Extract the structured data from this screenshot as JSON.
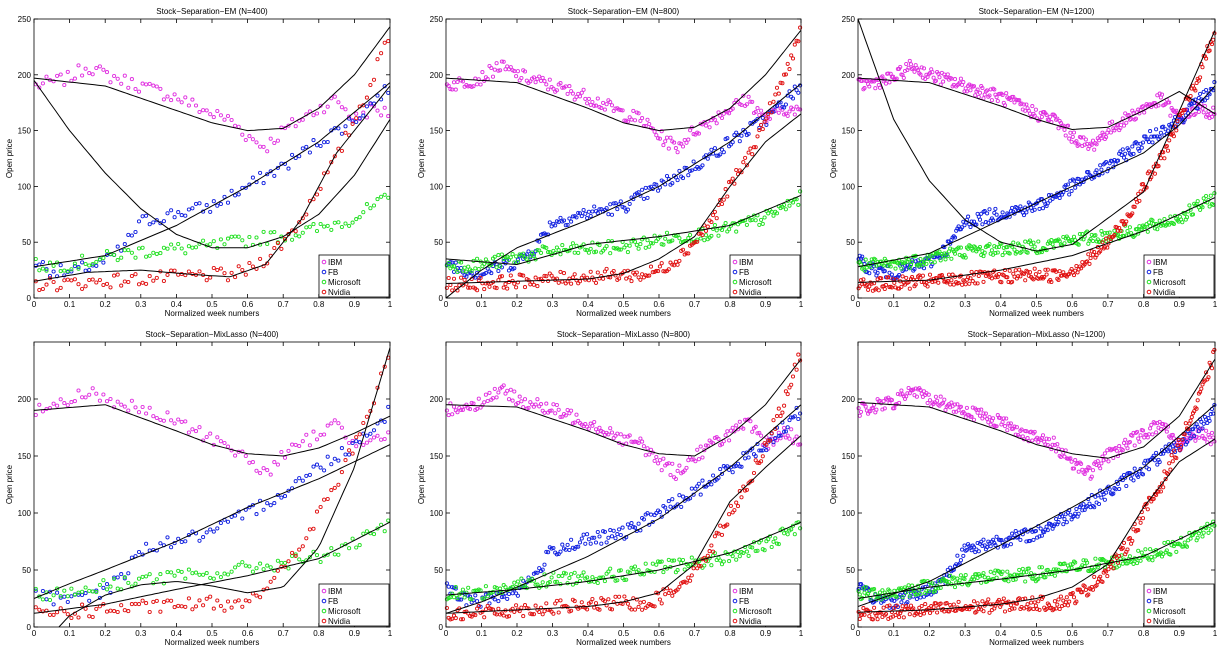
{
  "series_colors": {
    "IBM": "#e030e0",
    "FB": "#1020e0",
    "Microsoft": "#20e020",
    "Nvidia": "#e01010"
  },
  "chart_data": [
    {
      "type": "scatter",
      "title": "Stock−Separation−EM (N=400)",
      "xlabel": "Normalized week numbers",
      "ylabel": "Open price",
      "xlim": [
        0,
        1
      ],
      "ylim": [
        0,
        250
      ],
      "xticks": [
        "0",
        "0.1",
        "0.2",
        "0.3",
        "0.4",
        "0.5",
        "0.6",
        "0.7",
        "0.8",
        "0.9",
        "1"
      ],
      "yticks": [
        "0",
        "50",
        "100",
        "150",
        "200",
        "250"
      ],
      "legend": {
        "position": "bottom-right",
        "entries": [
          "IBM",
          "FB",
          "Microsoft",
          "Nvidia"
        ]
      },
      "n_points": 100,
      "fits": [
        {
          "x": [
            0,
            0.2,
            0.4,
            0.5,
            0.6,
            0.7,
            0.8,
            0.9,
            1
          ],
          "y": [
            197,
            190,
            168,
            157,
            150,
            152,
            170,
            200,
            243
          ]
        },
        {
          "x": [
            0,
            0.1,
            0.2,
            0.3,
            0.4,
            0.5,
            0.6,
            0.7,
            0.8,
            0.9,
            1
          ],
          "y": [
            195,
            150,
            112,
            80,
            57,
            45,
            45,
            55,
            75,
            110,
            160
          ]
        },
        {
          "x": [
            0,
            0.2,
            0.4,
            0.6,
            0.8,
            1
          ],
          "y": [
            28,
            38,
            65,
            100,
            140,
            193
          ]
        },
        {
          "x": [
            0,
            0.15,
            0.3,
            0.45,
            0.55,
            0.65,
            0.75,
            0.85,
            1
          ],
          "y": [
            15,
            23,
            25,
            21,
            19,
            30,
            70,
            130,
            190
          ]
        }
      ]
    },
    {
      "type": "scatter",
      "title": "Stock−Separation−EM (N=800)",
      "xlabel": "Normalized week numbers",
      "ylabel": "Open price",
      "xlim": [
        0,
        1
      ],
      "ylim": [
        0,
        250
      ],
      "xticks": [
        "0",
        "0.1",
        "0.2",
        "0.3",
        "0.4",
        "0.5",
        "0.6",
        "0.7",
        "0.8",
        "0.9",
        "1"
      ],
      "yticks": [
        "0",
        "50",
        "100",
        "150",
        "200",
        "250"
      ],
      "legend": {
        "position": "bottom-right",
        "entries": [
          "IBM",
          "FB",
          "Microsoft",
          "Nvidia"
        ]
      },
      "n_points": 200,
      "fits": [
        {
          "x": [
            0,
            0.2,
            0.4,
            0.5,
            0.6,
            0.7,
            0.8,
            0.9,
            1
          ],
          "y": [
            197,
            193,
            170,
            157,
            150,
            153,
            170,
            200,
            240
          ]
        },
        {
          "x": [
            0,
            0.1,
            0.2,
            0.4,
            0.6,
            0.8,
            1
          ],
          "y": [
            0,
            25,
            45,
            70,
            100,
            140,
            192
          ]
        },
        {
          "x": [
            0,
            0.2,
            0.4,
            0.6,
            0.8,
            1
          ],
          "y": [
            35,
            30,
            48,
            55,
            65,
            92
          ]
        },
        {
          "x": [
            0,
            0.2,
            0.4,
            0.5,
            0.6,
            0.7,
            0.8,
            0.9,
            1
          ],
          "y": [
            13,
            15,
            17,
            22,
            35,
            55,
            100,
            140,
            165
          ]
        }
      ]
    },
    {
      "type": "scatter",
      "title": "Stock−Separation−EM (N=1200)",
      "xlabel": "Normalized week numbers",
      "ylabel": "Open price",
      "xlim": [
        0,
        1
      ],
      "ylim": [
        0,
        250
      ],
      "xticks": [
        "0",
        "0.1",
        "0.2",
        "0.3",
        "0.4",
        "0.5",
        "0.6",
        "0.7",
        "0.8",
        "0.9",
        "1"
      ],
      "yticks": [
        "0",
        "50",
        "100",
        "150",
        "200",
        "250"
      ],
      "legend": {
        "position": "bottom-right",
        "entries": [
          "IBM",
          "FB",
          "Microsoft",
          "Nvidia"
        ]
      },
      "n_points": 300,
      "fits": [
        {
          "x": [
            0,
            0.2,
            0.4,
            0.5,
            0.6,
            0.7,
            0.8,
            0.9,
            1
          ],
          "y": [
            197,
            193,
            172,
            160,
            151,
            153,
            168,
            185,
            165
          ]
        },
        {
          "x": [
            0,
            0.1,
            0.2,
            0.3,
            0.4,
            0.5,
            0.6,
            0.8,
            1
          ],
          "y": [
            250,
            160,
            105,
            70,
            50,
            42,
            48,
            95,
            240
          ]
        },
        {
          "x": [
            0,
            0.2,
            0.4,
            0.6,
            0.8,
            0.9,
            1
          ],
          "y": [
            28,
            40,
            70,
            100,
            130,
            155,
            190
          ]
        },
        {
          "x": [
            0,
            0.2,
            0.4,
            0.6,
            0.8,
            1
          ],
          "y": [
            14,
            16,
            25,
            38,
            60,
            90
          ]
        }
      ]
    },
    {
      "type": "scatter",
      "title": "Stock−Separation−MixLasso (N=400)",
      "xlabel": "Normalized week numbers",
      "ylabel": "Open price",
      "xlim": [
        0,
        1
      ],
      "ylim": [
        0,
        250
      ],
      "xticks": [
        "0",
        "0.1",
        "0.2",
        "0.3",
        "0.4",
        "0.5",
        "0.6",
        "0.7",
        "0.8",
        "0.9",
        "1"
      ],
      "yticks": [
        "0",
        "50",
        "100",
        "150",
        "200"
      ],
      "legend": {
        "position": "bottom-right",
        "entries": [
          "IBM",
          "FB",
          "Microsoft",
          "Nvidia"
        ]
      },
      "n_points": 100,
      "fits": [
        {
          "x": [
            0,
            0.2,
            0.4,
            0.5,
            0.6,
            0.7,
            0.8,
            0.9,
            1
          ],
          "y": [
            190,
            195,
            172,
            160,
            152,
            150,
            157,
            170,
            185
          ]
        },
        {
          "x": [
            0,
            0.1,
            0.2,
            0.4,
            0.6,
            0.8,
            1
          ],
          "y": [
            25,
            38,
            50,
            75,
            105,
            130,
            160
          ]
        },
        {
          "x": [
            0,
            0.2,
            0.4,
            0.6,
            0.8,
            1
          ],
          "y": [
            12,
            20,
            33,
            45,
            60,
            92
          ]
        },
        {
          "x": [
            0.07,
            0.1,
            0.2,
            0.3,
            0.4,
            0.5,
            0.6,
            0.7,
            0.8,
            0.9,
            1
          ],
          "y": [
            0,
            10,
            28,
            37,
            40,
            36,
            30,
            35,
            70,
            140,
            245
          ]
        }
      ]
    },
    {
      "type": "scatter",
      "title": "Stock−Separation−MixLasso (N=800)",
      "xlabel": "Normalized week numbers",
      "ylabel": "Open price",
      "xlim": [
        0,
        1
      ],
      "ylim": [
        0,
        250
      ],
      "xticks": [
        "0",
        "0.1",
        "0.2",
        "0.3",
        "0.4",
        "0.5",
        "0.6",
        "0.7",
        "0.8",
        "0.9",
        "1"
      ],
      "yticks": [
        "0",
        "50",
        "100",
        "150",
        "200"
      ],
      "legend": {
        "position": "bottom-right",
        "entries": [
          "IBM",
          "FB",
          "Microsoft",
          "Nvidia"
        ]
      },
      "n_points": 200,
      "fits": [
        {
          "x": [
            0,
            0.2,
            0.4,
            0.5,
            0.6,
            0.7,
            0.8,
            0.9,
            1
          ],
          "y": [
            195,
            193,
            172,
            160,
            152,
            150,
            168,
            195,
            235
          ]
        },
        {
          "x": [
            0,
            0.1,
            0.2,
            0.4,
            0.6,
            0.8,
            1
          ],
          "y": [
            12,
            22,
            35,
            62,
            95,
            140,
            195
          ]
        },
        {
          "x": [
            0,
            0.2,
            0.4,
            0.6,
            0.8,
            1
          ],
          "y": [
            28,
            33,
            40,
            50,
            65,
            92
          ]
        },
        {
          "x": [
            0,
            0.2,
            0.4,
            0.5,
            0.6,
            0.7,
            0.8,
            0.9,
            1
          ],
          "y": [
            12,
            15,
            18,
            22,
            30,
            55,
            110,
            140,
            168
          ]
        }
      ]
    },
    {
      "type": "scatter",
      "title": "Stock−Separation−MixLasso (N=1200)",
      "xlabel": "Normalized week numbers",
      "ylabel": "Open price",
      "xlim": [
        0,
        1
      ],
      "ylim": [
        0,
        250
      ],
      "xticks": [
        "0",
        "0.1",
        "0.2",
        "0.3",
        "0.4",
        "0.5",
        "0.6",
        "0.7",
        "0.8",
        "0.9",
        "1"
      ],
      "yticks": [
        "0",
        "50",
        "100",
        "150",
        "200"
      ],
      "legend": {
        "position": "bottom-right",
        "entries": [
          "IBM",
          "FB",
          "Microsoft",
          "Nvidia"
        ]
      },
      "n_points": 300,
      "fits": [
        {
          "x": [
            0,
            0.2,
            0.4,
            0.5,
            0.6,
            0.7,
            0.8,
            0.9,
            1
          ],
          "y": [
            197,
            193,
            172,
            160,
            152,
            148,
            158,
            185,
            235
          ]
        },
        {
          "x": [
            0,
            0.2,
            0.4,
            0.6,
            0.8,
            1
          ],
          "y": [
            18,
            40,
            72,
            105,
            140,
            195
          ]
        },
        {
          "x": [
            0,
            0.2,
            0.4,
            0.6,
            0.8,
            1
          ],
          "y": [
            25,
            35,
            42,
            50,
            62,
            92
          ]
        },
        {
          "x": [
            0,
            0.2,
            0.4,
            0.5,
            0.6,
            0.7,
            0.8,
            0.9,
            1
          ],
          "y": [
            13,
            15,
            20,
            25,
            35,
            55,
            105,
            145,
            165
          ]
        }
      ]
    }
  ]
}
